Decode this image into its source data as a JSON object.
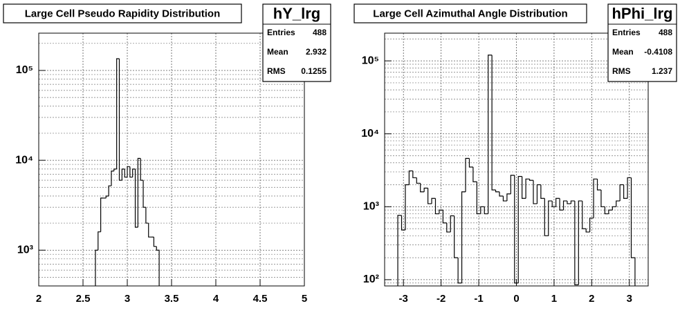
{
  "chart_data": [
    {
      "type": "histogram",
      "title": "Large Cell Pseudo Rapidity Distribution",
      "stats": {
        "name": "hY_lrg",
        "rows": [
          {
            "label": "Entries",
            "value": 488
          },
          {
            "label": "Mean",
            "value": 2.932
          },
          {
            "label": "RMS",
            "value": 0.1255
          }
        ]
      },
      "bins": [
        2.64,
        2.67,
        2.7,
        2.73,
        2.76,
        2.79,
        2.82,
        2.85,
        2.88,
        2.91,
        2.94,
        2.97,
        3,
        3.03,
        3.06,
        3.09,
        3.12,
        3.15,
        3.18,
        3.21,
        3.24,
        3.27,
        3.3,
        3.33,
        3.36
      ],
      "values": [
        1000,
        1600,
        3800,
        3800,
        4000,
        5200,
        7600,
        8000,
        135000,
        6000,
        8000,
        6500,
        8500,
        6500,
        8000,
        1800,
        10500,
        6000,
        3000,
        2000,
        1400,
        1400,
        1100,
        1000
      ],
      "color": "#000000",
      "log_y": true,
      "grid": true,
      "xlim": [
        2,
        5
      ],
      "xticks": [
        2,
        2.5,
        3,
        3.5,
        4,
        4.5,
        5
      ],
      "ylim": [
        400,
        260000
      ],
      "yticks": [
        {
          "value": 1000,
          "label": "10³"
        },
        {
          "value": 10000,
          "label": "10⁴"
        },
        {
          "value": 100000,
          "label": "10⁵"
        }
      ],
      "yminorticks": [
        500,
        600,
        700,
        800,
        900,
        2000,
        3000,
        4000,
        5000,
        6000,
        7000,
        8000,
        9000,
        20000,
        30000,
        40000,
        50000,
        60000,
        70000,
        80000,
        90000,
        200000
      ]
    },
    {
      "type": "histogram",
      "title": "Large Cell Azimuthal Angle Distribution",
      "stats": {
        "name": "hPhi_lrg",
        "rows": [
          {
            "label": "Entries",
            "value": 488
          },
          {
            "label": "Mean",
            "value": -0.4108
          },
          {
            "label": "RMS",
            "value": 1.237
          }
        ]
      },
      "bins": [
        -3.15,
        -3.05,
        -2.95,
        -2.85,
        -2.75,
        -2.65,
        -2.55,
        -2.45,
        -2.35,
        -2.25,
        -2.15,
        -2.05,
        -1.95,
        -1.85,
        -1.75,
        -1.65,
        -1.55,
        -1.45,
        -1.35,
        -1.25,
        -1.15,
        -1.05,
        -0.95,
        -0.85,
        -0.75,
        -0.65,
        -0.55,
        -0.45,
        -0.35,
        -0.25,
        -0.15,
        -0.05,
        0.05,
        0.15,
        0.25,
        0.35,
        0.45,
        0.55,
        0.65,
        0.75,
        0.85,
        0.95,
        1.05,
        1.15,
        1.25,
        1.35,
        1.45,
        1.55,
        1.65,
        1.75,
        1.85,
        1.95,
        2.05,
        2.15,
        2.25,
        2.35,
        2.45,
        2.55,
        2.65,
        2.75,
        2.85,
        2.95,
        3.05,
        3.15
      ],
      "values": [
        760,
        480,
        2000,
        3100,
        2500,
        2100,
        1600,
        1800,
        1100,
        1300,
        800,
        900,
        600,
        450,
        750,
        200,
        90,
        1600,
        4600,
        3500,
        2200,
        800,
        1000,
        800,
        120000,
        1700,
        1600,
        1400,
        1200,
        1500,
        2700,
        90,
        2600,
        1300,
        2400,
        2300,
        1100,
        2000,
        1300,
        400,
        1200,
        1000,
        1300,
        900,
        1200,
        1100,
        1200,
        85,
        1200,
        500,
        450,
        700,
        2400,
        1700,
        1000,
        800,
        900,
        1000,
        1200,
        2000,
        1300,
        2500,
        200
      ],
      "color": "#000000",
      "log_y": true,
      "grid": true,
      "xlim": [
        -3.5,
        3.5
      ],
      "xticks": [
        -3,
        -2,
        -1,
        0,
        1,
        2,
        3
      ],
      "ylim": [
        82,
        240000
      ],
      "yticks": [
        {
          "value": 100,
          "label": "10²"
        },
        {
          "value": 1000,
          "label": "10³"
        },
        {
          "value": 10000,
          "label": "10⁴"
        },
        {
          "value": 100000,
          "label": "10⁵"
        }
      ],
      "yminorticks": [
        90,
        200,
        300,
        400,
        500,
        600,
        700,
        800,
        900,
        2000,
        3000,
        4000,
        5000,
        6000,
        7000,
        8000,
        9000,
        20000,
        30000,
        40000,
        50000,
        60000,
        70000,
        80000,
        90000,
        200000
      ]
    }
  ]
}
